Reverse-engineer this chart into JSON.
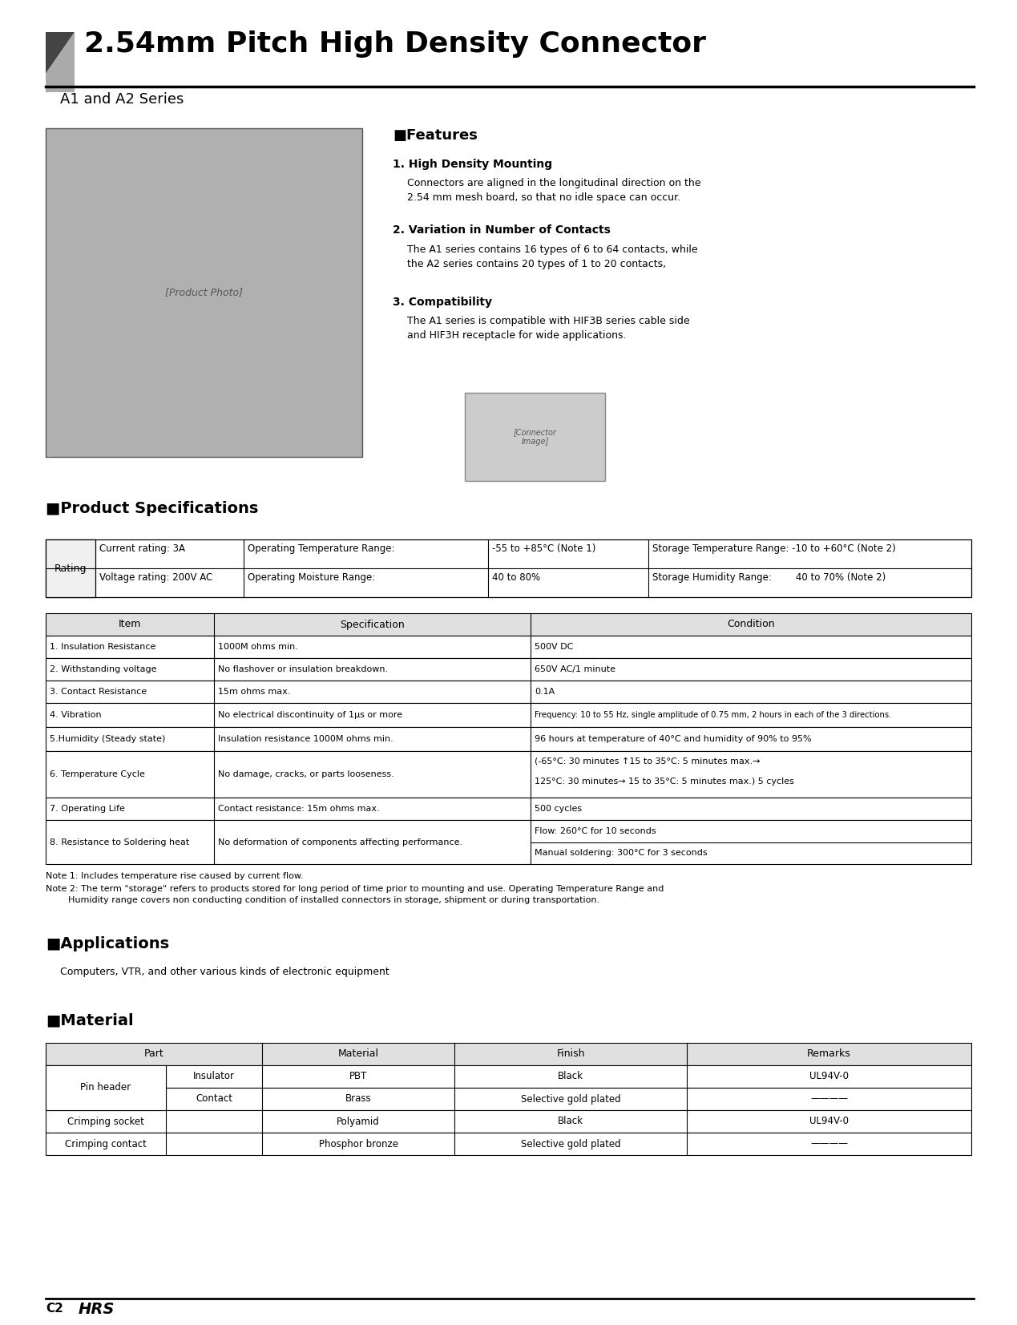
{
  "title": "2.54mm Pitch High Density Connector",
  "subtitle": "A1 and A2 Series",
  "features_title": "■Features",
  "feature1_title": "1. High Density Mounting",
  "feature1_text": "Connectors are aligned in the longitudinal direction on the\n2.54 mm mesh board, so that no idle space can occur.",
  "feature2_title": "2. Variation in Number of Contacts",
  "feature2_text": "The A1 series contains 16 types of 6 to 64 contacts, while\nthe A2 series contains 20 types of 1 to 20 contacts,",
  "feature3_title": "3. Compatibility",
  "feature3_text": "The A1 series is compatible with HIF3B series cable side\nand HIF3H receptacle for wide applications.",
  "product_spec_title": "■Product Specifications",
  "spec_headers": [
    "Item",
    "Specification",
    "Condition"
  ],
  "spec_rows": [
    [
      "1. Insulation Resistance",
      "1000M ohms min.",
      "500V DC"
    ],
    [
      "2. Withstanding voltage",
      "No flashover or insulation breakdown.",
      "650V AC/1 minute"
    ],
    [
      "3. Contact Resistance",
      "15m ohms max.",
      "0.1A"
    ],
    [
      "4. Vibration",
      "No electrical discontinuity of 1μs or more",
      "Frequency: 10 to 55 Hz, single amplitude of 0.75 mm, 2 hours in each of the 3 directions."
    ],
    [
      "5.Humidity (Steady state)",
      "Insulation resistance 1000M ohms min.",
      "96 hours at temperature of 40°C and humidity of 90% to 95%"
    ],
    [
      "6. Temperature Cycle",
      "No damage, cracks, or parts looseness.",
      "(-65°C: 30 minutes ↑15 to 35°C: 5 minutes max.→\n125°C: 30 minutes→ 15 to 35°C: 5 minutes max.) 5 cycles"
    ],
    [
      "7. Operating Life",
      "Contact resistance: 15m ohms max.",
      "500 cycles"
    ],
    [
      "8. Resistance to Soldering heat",
      "No deformation of components affecting performance.",
      "Flow: 260°C for 10 seconds\nManual soldering: 300°C for 3 seconds"
    ]
  ],
  "note1": "Note 1: Includes temperature rise caused by current flow.",
  "note2": "Note 2: The term \"storage\" refers to products stored for long period of time prior to mounting and use. Operating Temperature Range and\n        Humidity range covers non conducting condition of installed connectors in storage, shipment or during transportation.",
  "applications_title": "■Applications",
  "applications_text": "Computers, VTR, and other various kinds of electronic equipment",
  "material_title": "■Material",
  "material_rows": [
    [
      "Pin header",
      "Insulator",
      "PBT",
      "Black",
      "UL94V-0"
    ],
    [
      "",
      "Contact",
      "Brass",
      "Selective gold plated",
      "————"
    ],
    [
      "Crimping socket",
      "",
      "Polyamid",
      "Black",
      "UL94V-0"
    ],
    [
      "Crimping contact",
      "",
      "Phosphor bronze",
      "Selective gold plated",
      "————"
    ]
  ],
  "footer_page": "C2",
  "bg_color": "#ffffff",
  "rating_label": "Rating",
  "rating_row1_col1": "Current rating: 3A",
  "rating_row1_col2a": "Operating Temperature Range:",
  "rating_row1_col2b": "-55 to +85°C (Note 1)",
  "rating_row1_col3": "Storage Temperature Range: -10 to +60°C (Note 2)",
  "rating_row2_col1": "Voltage rating: 200V AC",
  "rating_row2_col2a": "Operating Moisture Range:",
  "rating_row2_col2b": "40 to 80%",
  "rating_row2_col3": "Storage Humidity Range:        40 to 70% (Note 2)"
}
